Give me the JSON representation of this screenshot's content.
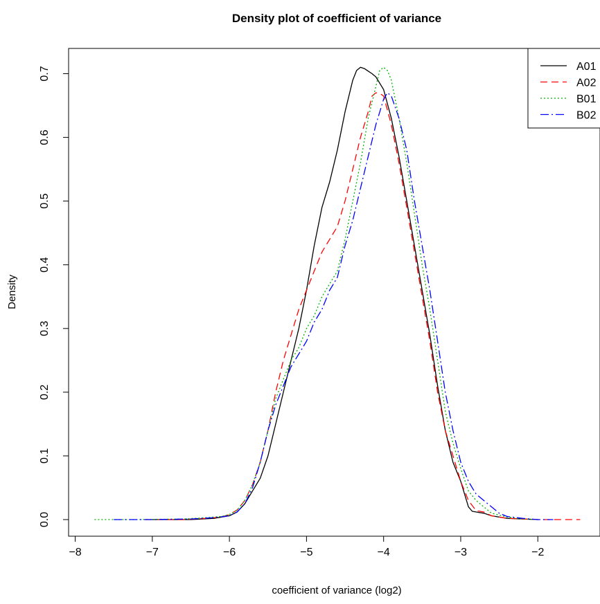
{
  "chart_data": {
    "type": "line",
    "title": "Density plot of coefficient of variance",
    "xlabel": "coefficient of variance (log2)",
    "ylabel": "Density",
    "xlim": [
      -8.05,
      -1.4
    ],
    "ylim": [
      -0.03,
      0.73
    ],
    "xticks": [
      -8,
      -7,
      -6,
      -5,
      -4,
      -3,
      -2
    ],
    "yticks": [
      0.0,
      0.1,
      0.2,
      0.3,
      0.4,
      0.5,
      0.6,
      0.7
    ],
    "xtick_labels": [
      "−8",
      "−7",
      "−6",
      "−5",
      "−4",
      "−3",
      "−2"
    ],
    "ytick_labels": [
      "0.0",
      "0.1",
      "0.2",
      "0.3",
      "0.4",
      "0.5",
      "0.6",
      "0.7"
    ],
    "grid": false,
    "legend_position": "top-right",
    "series": [
      {
        "name": "A01",
        "color": "#000000",
        "dash": "solid",
        "x": [
          -7.0,
          -6.5,
          -6.2,
          -6.0,
          -5.9,
          -5.8,
          -5.7,
          -5.6,
          -5.5,
          -5.4,
          -5.3,
          -5.2,
          -5.1,
          -5.0,
          -4.9,
          -4.8,
          -4.7,
          -4.6,
          -4.5,
          -4.4,
          -4.35,
          -4.3,
          -4.25,
          -4.2,
          -4.15,
          -4.1,
          -4.0,
          -3.9,
          -3.8,
          -3.7,
          -3.6,
          -3.5,
          -3.4,
          -3.3,
          -3.2,
          -3.1,
          -3.0,
          -2.9,
          -2.85,
          -2.8,
          -2.7,
          -2.6,
          -2.4,
          -2.2,
          -2.0
        ],
        "y": [
          0.0,
          0.0,
          0.002,
          0.006,
          0.012,
          0.025,
          0.045,
          0.065,
          0.1,
          0.15,
          0.2,
          0.25,
          0.3,
          0.36,
          0.43,
          0.49,
          0.53,
          0.58,
          0.64,
          0.69,
          0.705,
          0.71,
          0.708,
          0.704,
          0.7,
          0.695,
          0.675,
          0.63,
          0.57,
          0.5,
          0.43,
          0.36,
          0.29,
          0.21,
          0.14,
          0.09,
          0.06,
          0.02,
          0.013,
          0.012,
          0.01,
          0.006,
          0.002,
          0.001,
          0.0
        ]
      },
      {
        "name": "A02",
        "color": "#ff0000",
        "dash": "10,6",
        "x": [
          -7.1,
          -6.6,
          -6.3,
          -6.1,
          -6.0,
          -5.9,
          -5.8,
          -5.7,
          -5.6,
          -5.5,
          -5.4,
          -5.3,
          -5.2,
          -5.1,
          -5.0,
          -4.9,
          -4.8,
          -4.7,
          -4.6,
          -4.5,
          -4.4,
          -4.3,
          -4.2,
          -4.15,
          -4.1,
          -4.05,
          -4.0,
          -3.9,
          -3.8,
          -3.7,
          -3.6,
          -3.5,
          -3.4,
          -3.3,
          -3.2,
          -3.1,
          -3.0,
          -2.9,
          -2.8,
          -2.7,
          -2.6,
          -2.4,
          -2.0,
          -1.6,
          -1.45
        ],
        "y": [
          0.0,
          0.0,
          0.002,
          0.004,
          0.008,
          0.015,
          0.03,
          0.055,
          0.09,
          0.14,
          0.2,
          0.25,
          0.29,
          0.33,
          0.36,
          0.39,
          0.42,
          0.44,
          0.46,
          0.5,
          0.55,
          0.6,
          0.64,
          0.665,
          0.67,
          0.669,
          0.665,
          0.62,
          0.56,
          0.49,
          0.42,
          0.35,
          0.28,
          0.2,
          0.14,
          0.1,
          0.06,
          0.03,
          0.014,
          0.012,
          0.006,
          0.002,
          0.0,
          0.0,
          0.0
        ]
      },
      {
        "name": "B01",
        "color": "#00b200",
        "dash": "2,3",
        "x": [
          -7.75,
          -7.2,
          -6.6,
          -6.3,
          -6.1,
          -6.0,
          -5.9,
          -5.8,
          -5.7,
          -5.6,
          -5.5,
          -5.4,
          -5.3,
          -5.2,
          -5.1,
          -5.0,
          -4.9,
          -4.8,
          -4.7,
          -4.6,
          -4.5,
          -4.4,
          -4.3,
          -4.2,
          -4.1,
          -4.05,
          -4.0,
          -3.95,
          -3.9,
          -3.8,
          -3.7,
          -3.6,
          -3.5,
          -3.4,
          -3.3,
          -3.2,
          -3.1,
          -3.0,
          -2.9,
          -2.8,
          -2.7,
          -2.6,
          -2.4,
          -2.2,
          -2.0
        ],
        "y": [
          0.0,
          0.0,
          0.001,
          0.003,
          0.005,
          0.008,
          0.015,
          0.03,
          0.055,
          0.09,
          0.14,
          0.19,
          0.22,
          0.25,
          0.27,
          0.3,
          0.32,
          0.35,
          0.37,
          0.39,
          0.44,
          0.5,
          0.56,
          0.63,
          0.68,
          0.705,
          0.71,
          0.705,
          0.69,
          0.63,
          0.56,
          0.48,
          0.4,
          0.33,
          0.25,
          0.17,
          0.12,
          0.08,
          0.045,
          0.03,
          0.02,
          0.01,
          0.004,
          0.001,
          0.0
        ]
      },
      {
        "name": "B02",
        "color": "#0000ff",
        "dash": "12,4,2,4",
        "x": [
          -7.5,
          -7.0,
          -6.5,
          -6.2,
          -6.0,
          -5.9,
          -5.8,
          -5.7,
          -5.6,
          -5.5,
          -5.4,
          -5.3,
          -5.2,
          -5.1,
          -5.0,
          -4.9,
          -4.8,
          -4.7,
          -4.6,
          -4.5,
          -4.4,
          -4.3,
          -4.2,
          -4.1,
          -4.0,
          -3.95,
          -3.9,
          -3.8,
          -3.7,
          -3.6,
          -3.5,
          -3.4,
          -3.3,
          -3.2,
          -3.1,
          -3.0,
          -2.9,
          -2.8,
          -2.7,
          -2.6,
          -2.5,
          -2.4,
          -2.2,
          -2.0,
          -1.8
        ],
        "y": [
          0.0,
          0.0,
          0.001,
          0.003,
          0.006,
          0.012,
          0.025,
          0.05,
          0.09,
          0.14,
          0.18,
          0.21,
          0.24,
          0.26,
          0.28,
          0.31,
          0.33,
          0.36,
          0.38,
          0.43,
          0.47,
          0.52,
          0.57,
          0.62,
          0.66,
          0.67,
          0.665,
          0.63,
          0.58,
          0.5,
          0.43,
          0.36,
          0.28,
          0.2,
          0.14,
          0.09,
          0.06,
          0.04,
          0.03,
          0.02,
          0.01,
          0.005,
          0.002,
          0.0,
          0.0
        ]
      }
    ]
  }
}
